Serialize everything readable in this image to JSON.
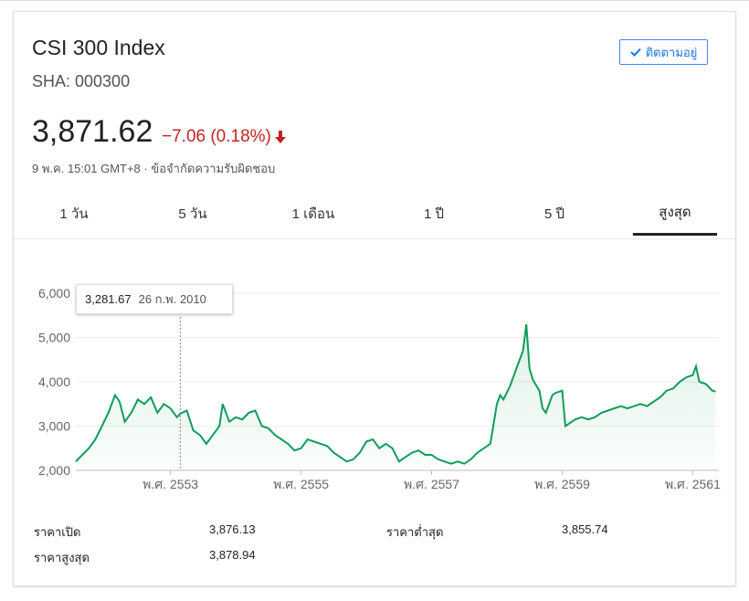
{
  "header": {
    "title": "CSI 300 Index",
    "subtitle": "SHA: 000300",
    "follow_label": "ติดตามอยู่"
  },
  "quote": {
    "price": "3,871.62",
    "change": "−7.06 (0.18%)",
    "meta": "9 พ.ค. 15:01 GMT+8 · ข้อจำกัดความรับผิดชอบ"
  },
  "tabs": [
    {
      "label": "1 วัน"
    },
    {
      "label": "5 วัน"
    },
    {
      "label": "1 เดือน"
    },
    {
      "label": "1 ปี"
    },
    {
      "label": "5 ปี"
    },
    {
      "label": "สูงสุด"
    }
  ],
  "tooltip": {
    "value": "3,281.67",
    "date": "26 ก.พ. 2010"
  },
  "stats": {
    "open_label": "ราคาเปิด",
    "open_value": "3,876.13",
    "high_label": "ราคาสูงสุด",
    "high_value": "3,878.94",
    "low_label": "ราคาต่ำสุด",
    "low_value": "3,855.74"
  },
  "colors": {
    "line": "#0f9d58",
    "down": "#c5221f",
    "accent": "#1a73e8"
  },
  "chart_data": {
    "type": "area",
    "ylim": [
      2000,
      6000
    ],
    "yticks": [
      "2,000",
      "3,000",
      "4,000",
      "5,000",
      "6,000"
    ],
    "xticks": [
      {
        "label": "พ.ศ. 2553",
        "t": 2010.0
      },
      {
        "label": "พ.ศ. 2555",
        "t": 2012.0
      },
      {
        "label": "พ.ศ. 2557",
        "t": 2014.0
      },
      {
        "label": "พ.ศ. 2559",
        "t": 2016.0
      },
      {
        "label": "พ.ศ. 2561",
        "t": 2018.0
      }
    ],
    "xrange": [
      2008.55,
      2018.4
    ],
    "cursor_t": 2010.15,
    "series": [
      {
        "name": "",
        "points": [
          [
            2008.55,
            2200
          ],
          [
            2008.65,
            2350
          ],
          [
            2008.75,
            2500
          ],
          [
            2008.85,
            2700
          ],
          [
            2008.95,
            3000
          ],
          [
            2009.05,
            3300
          ],
          [
            2009.15,
            3700
          ],
          [
            2009.22,
            3550
          ],
          [
            2009.3,
            3100
          ],
          [
            2009.4,
            3300
          ],
          [
            2009.5,
            3600
          ],
          [
            2009.6,
            3500
          ],
          [
            2009.7,
            3650
          ],
          [
            2009.8,
            3300
          ],
          [
            2009.9,
            3500
          ],
          [
            2010.0,
            3400
          ],
          [
            2010.1,
            3200
          ],
          [
            2010.15,
            3280
          ],
          [
            2010.25,
            3350
          ],
          [
            2010.35,
            2900
          ],
          [
            2010.45,
            2800
          ],
          [
            2010.55,
            2600
          ],
          [
            2010.65,
            2800
          ],
          [
            2010.75,
            3000
          ],
          [
            2010.8,
            3500
          ],
          [
            2010.9,
            3100
          ],
          [
            2011.0,
            3200
          ],
          [
            2011.1,
            3150
          ],
          [
            2011.2,
            3300
          ],
          [
            2011.3,
            3350
          ],
          [
            2011.4,
            3000
          ],
          [
            2011.5,
            2950
          ],
          [
            2011.6,
            2800
          ],
          [
            2011.7,
            2700
          ],
          [
            2011.8,
            2600
          ],
          [
            2011.9,
            2450
          ],
          [
            2012.0,
            2500
          ],
          [
            2012.1,
            2700
          ],
          [
            2012.2,
            2650
          ],
          [
            2012.3,
            2600
          ],
          [
            2012.4,
            2550
          ],
          [
            2012.5,
            2400
          ],
          [
            2012.6,
            2300
          ],
          [
            2012.7,
            2200
          ],
          [
            2012.8,
            2250
          ],
          [
            2012.9,
            2400
          ],
          [
            2013.0,
            2650
          ],
          [
            2013.1,
            2700
          ],
          [
            2013.2,
            2500
          ],
          [
            2013.3,
            2600
          ],
          [
            2013.4,
            2500
          ],
          [
            2013.5,
            2200
          ],
          [
            2013.6,
            2300
          ],
          [
            2013.7,
            2400
          ],
          [
            2013.8,
            2450
          ],
          [
            2013.9,
            2350
          ],
          [
            2014.0,
            2350
          ],
          [
            2014.1,
            2250
          ],
          [
            2014.2,
            2200
          ],
          [
            2014.3,
            2150
          ],
          [
            2014.4,
            2200
          ],
          [
            2014.5,
            2150
          ],
          [
            2014.6,
            2250
          ],
          [
            2014.7,
            2400
          ],
          [
            2014.8,
            2500
          ],
          [
            2014.9,
            2600
          ],
          [
            2015.0,
            3500
          ],
          [
            2015.05,
            3700
          ],
          [
            2015.1,
            3600
          ],
          [
            2015.2,
            3900
          ],
          [
            2015.3,
            4300
          ],
          [
            2015.4,
            4700
          ],
          [
            2015.45,
            5300
          ],
          [
            2015.5,
            4300
          ],
          [
            2015.55,
            4050
          ],
          [
            2015.65,
            3800
          ],
          [
            2015.7,
            3400
          ],
          [
            2015.75,
            3300
          ],
          [
            2015.85,
            3700
          ],
          [
            2015.9,
            3750
          ],
          [
            2016.0,
            3800
          ],
          [
            2016.05,
            3000
          ],
          [
            2016.1,
            3050
          ],
          [
            2016.2,
            3150
          ],
          [
            2016.3,
            3200
          ],
          [
            2016.4,
            3150
          ],
          [
            2016.5,
            3200
          ],
          [
            2016.6,
            3300
          ],
          [
            2016.7,
            3350
          ],
          [
            2016.8,
            3400
          ],
          [
            2016.9,
            3450
          ],
          [
            2017.0,
            3400
          ],
          [
            2017.1,
            3450
          ],
          [
            2017.2,
            3500
          ],
          [
            2017.3,
            3450
          ],
          [
            2017.4,
            3550
          ],
          [
            2017.5,
            3650
          ],
          [
            2017.6,
            3800
          ],
          [
            2017.7,
            3850
          ],
          [
            2017.8,
            4000
          ],
          [
            2017.9,
            4100
          ],
          [
            2018.0,
            4150
          ],
          [
            2018.05,
            4350
          ],
          [
            2018.1,
            4000
          ],
          [
            2018.2,
            3950
          ],
          [
            2018.3,
            3800
          ],
          [
            2018.35,
            3780
          ]
        ]
      }
    ]
  }
}
